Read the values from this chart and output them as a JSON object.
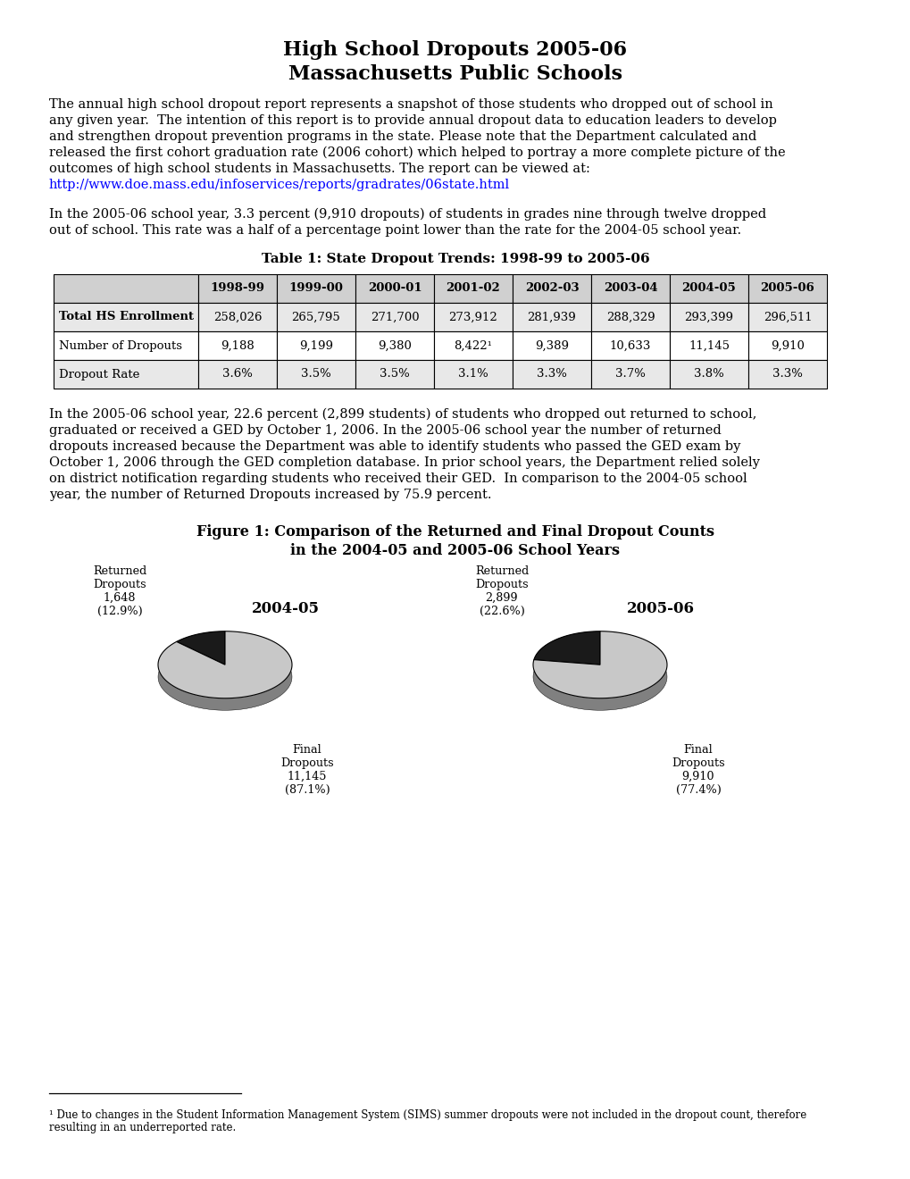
{
  "title_line1": "High School Dropouts 2005-06",
  "title_line2": "Massachusetts Public Schools",
  "para1": "The annual high school dropout report represents a snapshot of those students who dropped out of school in\nany given year.  The intention of this report is to provide annual dropout data to education leaders to develop\nand strengthen dropout prevention programs in the state. Please note that the Department calculated and\nreleased the first cohort graduation rate (2006 cohort) which helped to portray a more complete picture of the\noutcomes of high school students in Massachusetts. The report can be viewed at:",
  "url": "http://www.doe.mass.edu/infoservices/reports/gradrates/06state.html",
  "para2": "In the 2005-06 school year, 3.3 percent (9,910 dropouts) of students in grades nine through twelve dropped\nout of school. This rate was a half of a percentage point lower than the rate for the 2004-05 school year.",
  "table_title": "Table 1: State Dropout Trends: 1998-99 to 2005-06",
  "table_headers": [
    "",
    "1998-99",
    "1999-00",
    "2000-01",
    "2001-02",
    "2002-03",
    "2003-04",
    "2004-05",
    "2005-06"
  ],
  "table_rows": [
    [
      "Total HS Enrollment",
      "258,026",
      "265,795",
      "271,700",
      "273,912",
      "281,939",
      "288,329",
      "293,399",
      "296,511"
    ],
    [
      "Number of Dropouts",
      "9,188",
      "9,199",
      "9,380",
      "8,422¹",
      "9,389",
      "10,633",
      "11,145",
      "9,910"
    ],
    [
      "Dropout Rate",
      "3.6%",
      "3.5%",
      "3.5%",
      "3.1%",
      "3.3%",
      "3.7%",
      "3.8%",
      "3.3%"
    ]
  ],
  "para3": "In the 2005-06 school year, 22.6 percent (2,899 students) of students who dropped out returned to school,\ngraduated or received a GED by October 1, 2006. In the 2005-06 school year the number of returned\ndropouts increased because the Department was able to identify students who passed the GED exam by\nOctober 1, 2006 through the GED completion database. In prior school years, the Department relied solely\non district notification regarding students who received their GED.  In comparison to the 2004-05 school\nyear, the number of Returned Dropouts increased by 75.9 percent.",
  "fig_title_line1": "Figure 1: Comparison of the Returned and Final Dropout Counts",
  "fig_title_line2": "in the 2004-05 and 2005-06 School Years",
  "pie1_label": "2004-05",
  "pie1_slices": [
    12.9,
    87.1
  ],
  "pie1_colors": [
    "#1a1a1a",
    "#c8c8c8"
  ],
  "pie1_dark_colors": [
    "#0d0d0d",
    "#808080"
  ],
  "pie1_returned_label": "Returned\nDropouts\n1,648\n(12.9%)",
  "pie1_final_label": "Final\nDropouts\n11,145\n(87.1%)",
  "pie2_label": "2005-06",
  "pie2_slices": [
    22.6,
    77.4
  ],
  "pie2_colors": [
    "#1a1a1a",
    "#c8c8c8"
  ],
  "pie2_dark_colors": [
    "#0d0d0d",
    "#808080"
  ],
  "pie2_returned_label": "Returned\nDropouts\n2,899\n(22.6%)",
  "pie2_final_label": "Final\nDropouts\n9,910\n(77.4%)",
  "footnote_line1": "¹ Due to changes in the Student Information Management System (SIMS) summer dropouts were not included in the dropout count, therefore",
  "footnote_line2": "resulting in an underreported rate.",
  "bg_color": "#ffffff",
  "text_color": "#000000",
  "header_bg": "#d0d0d0",
  "row1_bg": "#e8e8e8",
  "row2_bg": "#ffffff",
  "row3_bg": "#e8e8e8"
}
